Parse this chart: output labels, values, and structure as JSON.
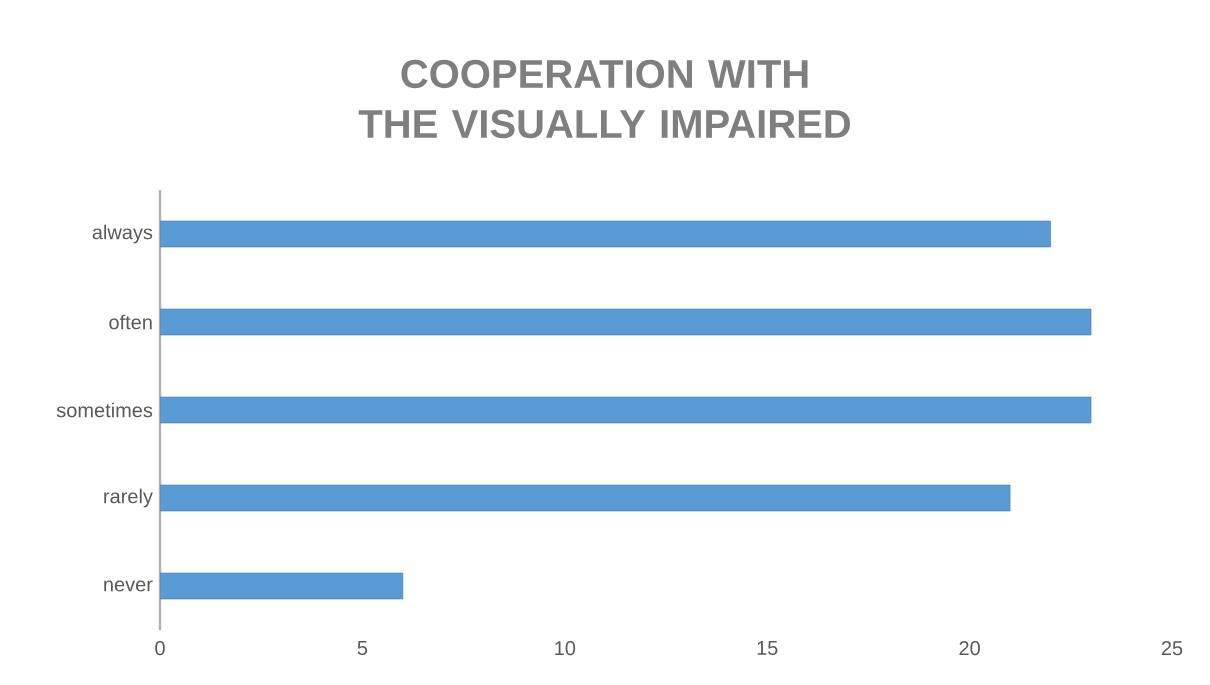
{
  "chart_data": {
    "type": "bar",
    "orientation": "horizontal",
    "title": "COOPERATION WITH THE VISUALLY IMPAIRED",
    "categories": [
      "always",
      "often",
      "sometimes",
      "rarely",
      "never"
    ],
    "values": [
      22,
      23,
      23,
      21,
      6
    ],
    "color": "#5b9bd5",
    "xlim": [
      0,
      25
    ],
    "xticks": [
      0,
      5,
      10,
      15,
      20,
      25
    ]
  }
}
